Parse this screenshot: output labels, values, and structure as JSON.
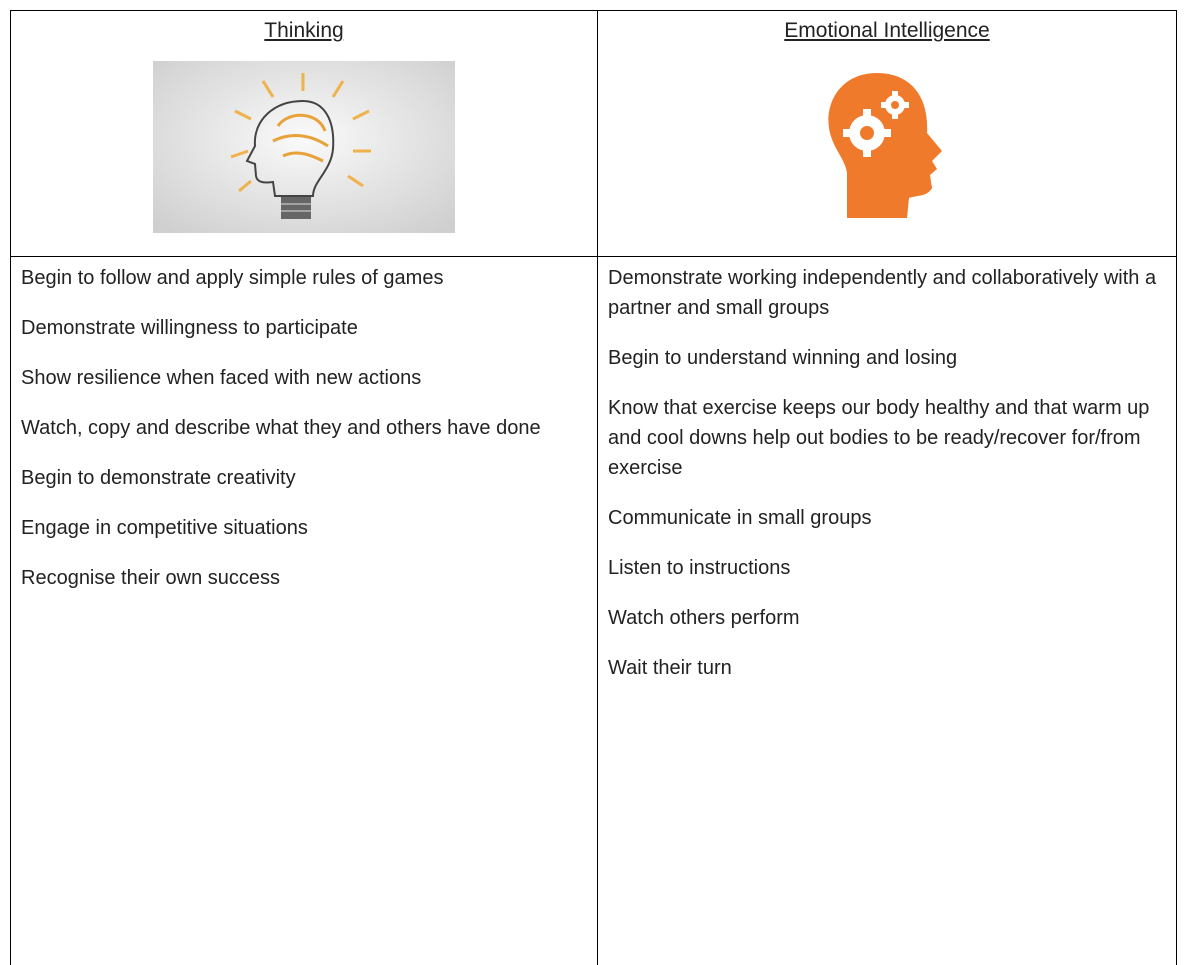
{
  "table": {
    "columns": [
      {
        "header": "Thinking",
        "items": [
          "Begin to follow and apply simple rules of games",
          "Demonstrate willingness to participate",
          "Show resilience when faced with new actions",
          "Watch, copy and describe what they and others have done",
          "Begin to demonstrate creativity",
          "Engage in competitive situations",
          "Recognise their own success"
        ]
      },
      {
        "header": "Emotional Intelligence",
        "items": [
          "Demonstrate working independently and collaboratively with a partner and small groups",
          "Begin to understand winning and losing",
          "Know that exercise keeps our body healthy and that warm up and cool downs help out bodies to be ready/recover for/from exercise",
          "Communicate in small groups",
          "Listen to instructions",
          "Watch others perform",
          "Wait their turn"
        ]
      }
    ]
  }
}
